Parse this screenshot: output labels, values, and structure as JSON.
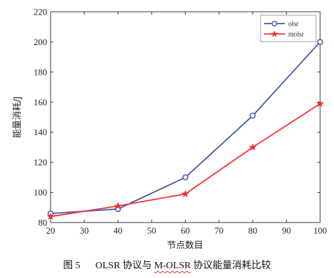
{
  "chart_data": {
    "type": "line",
    "x": [
      20,
      40,
      60,
      80,
      100
    ],
    "series": [
      {
        "name": "olsr",
        "values": [
          86,
          89,
          110,
          151,
          200
        ],
        "color": "#4455aa",
        "marker": "circle"
      },
      {
        "name": "molsr",
        "values": [
          84,
          91,
          99,
          130,
          159
        ],
        "color": "#ee3333",
        "marker": "star"
      }
    ],
    "xlabel": "节点数目",
    "ylabel": "能量消耗/J",
    "xlim": [
      20,
      100
    ],
    "ylim": [
      80,
      220
    ],
    "xticks": [
      "20",
      "30",
      "40",
      "50",
      "60",
      "70",
      "80",
      "90",
      "100"
    ],
    "yticks": [
      "80",
      "100",
      "120",
      "140",
      "160",
      "180",
      "200",
      "220"
    ],
    "grid": false,
    "legend_position": "top-right"
  },
  "caption": {
    "figure_number": "图 5",
    "text_part1": "OLSR 协议与 ",
    "text_part2": "M-OLSR",
    "text_part3": " 协议能量消耗比较"
  }
}
